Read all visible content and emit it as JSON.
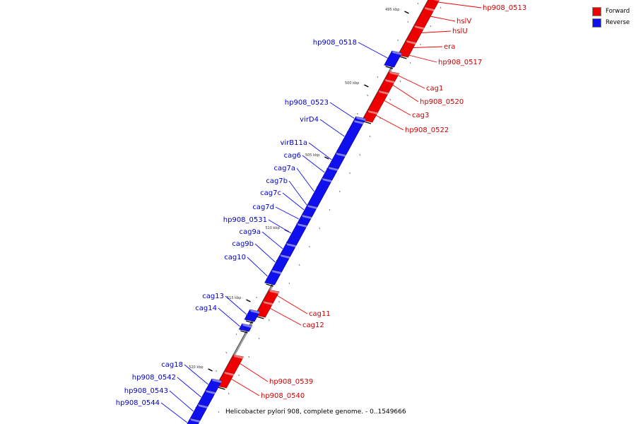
{
  "legend": {
    "forward_label": "Forward",
    "reverse_label": "Reverse",
    "forward_color": "#ee0000",
    "reverse_color": "#1010ee"
  },
  "caption": "Helicobacter pylori 908, complete genome. - 0..1549666",
  "scale": {
    "unit": "kbp",
    "ticks": [
      "495 kbp",
      "500 kbp",
      "505 kbp",
      "510 kbp",
      "515 kbp",
      "520 kbp"
    ]
  },
  "features": [
    {
      "name": "hp908_0513",
      "strand": "forward"
    },
    {
      "name": "hslV",
      "strand": "forward"
    },
    {
      "name": "hslU",
      "strand": "forward"
    },
    {
      "name": "era",
      "strand": "forward"
    },
    {
      "name": "hp908_0517",
      "strand": "forward"
    },
    {
      "name": "hp908_0518",
      "strand": "reverse"
    },
    {
      "name": "cag1",
      "strand": "forward"
    },
    {
      "name": "hp908_0520",
      "strand": "forward"
    },
    {
      "name": "cag3",
      "strand": "forward"
    },
    {
      "name": "hp908_0522",
      "strand": "forward"
    },
    {
      "name": "hp908_0523",
      "strand": "reverse"
    },
    {
      "name": "virD4",
      "strand": "reverse"
    },
    {
      "name": "virB11a",
      "strand": "reverse"
    },
    {
      "name": "cag6",
      "strand": "reverse"
    },
    {
      "name": "cag7a",
      "strand": "reverse"
    },
    {
      "name": "cag7b",
      "strand": "reverse"
    },
    {
      "name": "cag7c",
      "strand": "reverse"
    },
    {
      "name": "cag7d",
      "strand": "reverse"
    },
    {
      "name": "hp908_0531",
      "strand": "reverse"
    },
    {
      "name": "cag9a",
      "strand": "reverse"
    },
    {
      "name": "cag9b",
      "strand": "reverse"
    },
    {
      "name": "cag10",
      "strand": "reverse"
    },
    {
      "name": "cag11",
      "strand": "forward"
    },
    {
      "name": "cag12",
      "strand": "forward"
    },
    {
      "name": "cag13",
      "strand": "reverse"
    },
    {
      "name": "cag14",
      "strand": "reverse"
    },
    {
      "name": "hp908_0539",
      "strand": "forward"
    },
    {
      "name": "hp908_0540",
      "strand": "forward"
    },
    {
      "name": "cag18",
      "strand": "reverse"
    },
    {
      "name": "hp908_0542",
      "strand": "reverse"
    },
    {
      "name": "hp908_0543",
      "strand": "reverse"
    },
    {
      "name": "hp908_0544",
      "strand": "reverse"
    }
  ]
}
